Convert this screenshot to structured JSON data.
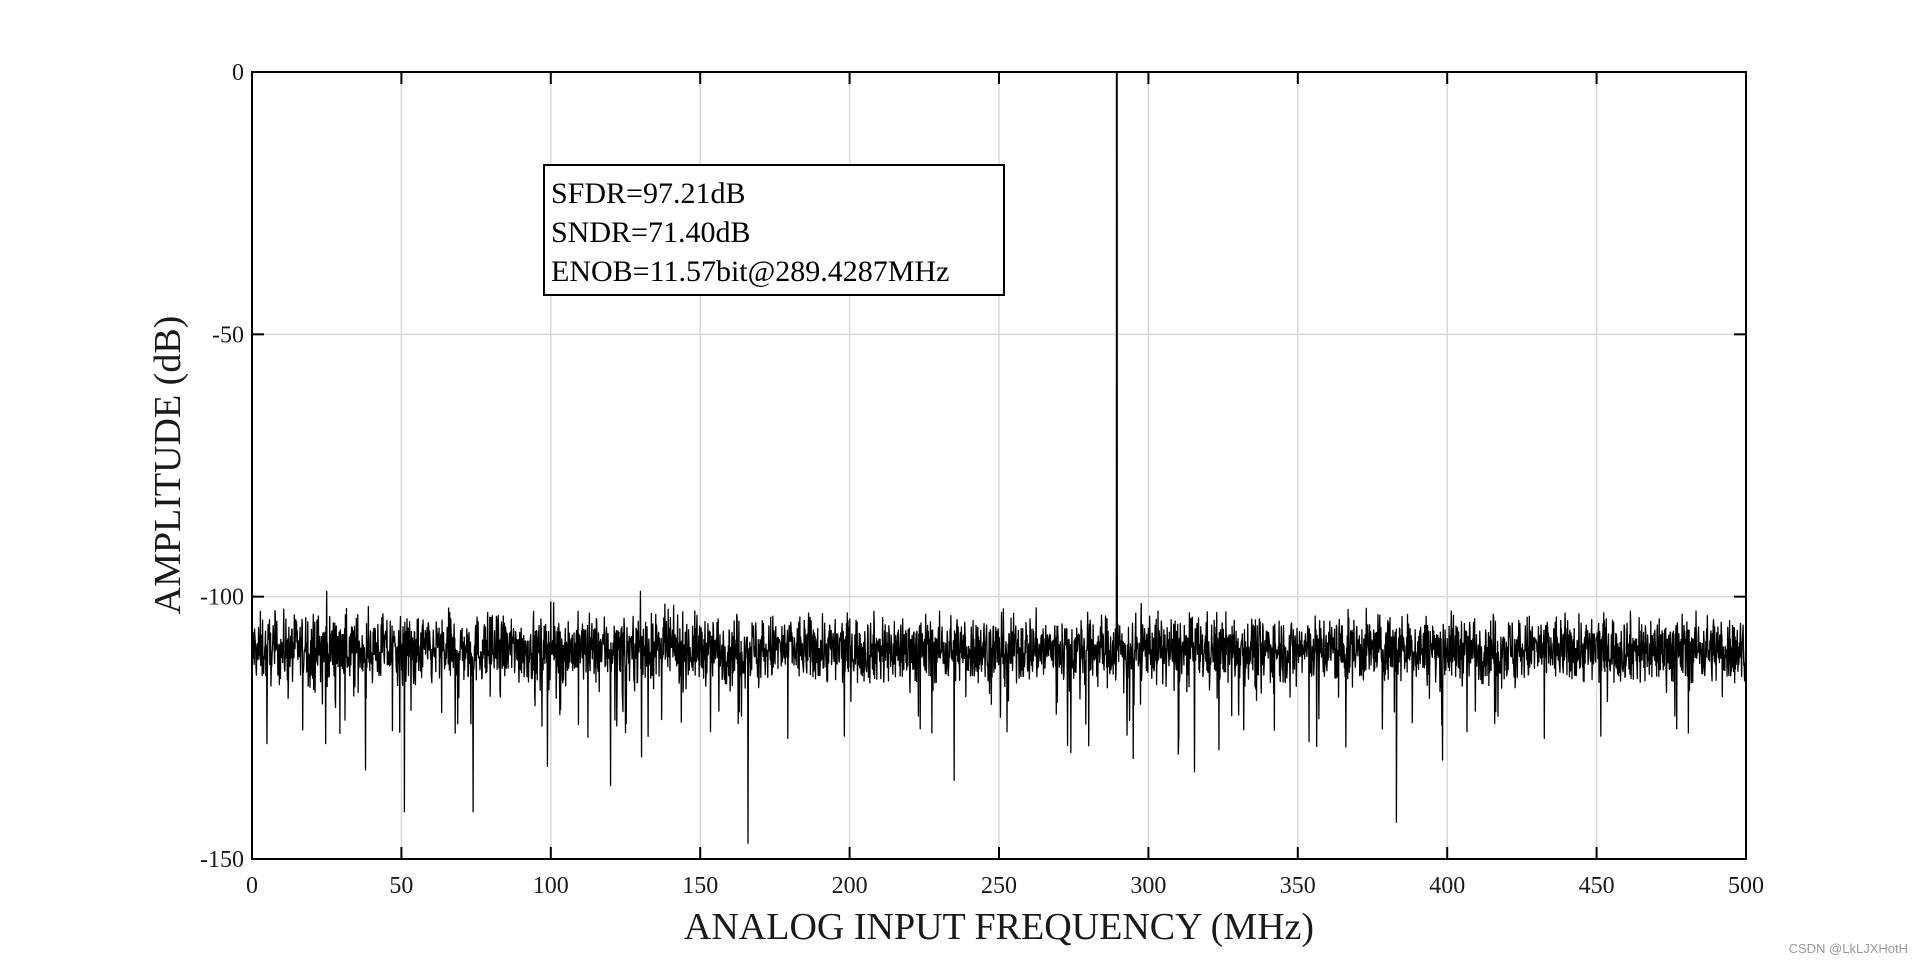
{
  "chart_data": {
    "type": "line",
    "title": "",
    "xlabel": "ANALOG INPUT FREQUENCY (MHz)",
    "ylabel": "AMPLITUDE (dB)",
    "xlim": [
      0,
      500
    ],
    "ylim": [
      -150,
      0
    ],
    "xticks": [
      0,
      50,
      100,
      150,
      200,
      250,
      300,
      350,
      400,
      450,
      500
    ],
    "yticks": [
      0,
      -50,
      -100,
      -150
    ],
    "xtick_labels": [
      "0",
      "50",
      "100",
      "150",
      "200",
      "250",
      "300",
      "350",
      "400",
      "450",
      "500"
    ],
    "ytick_labels": [
      "0",
      "-50",
      "-100",
      "-150"
    ],
    "grid": true,
    "legend": "none",
    "colors": {
      "line": "#000000",
      "grid": "#d9d9d9",
      "axes": "#000000"
    },
    "series": [
      {
        "noise_floor_db_mean": -110,
        "noise_floor_db_range": [
          -147,
          -98
        ],
        "x": [
          0,
          2,
          5,
          12,
          18,
          25,
          38,
          51,
          60,
          68,
          74,
          80,
          100,
          120,
          130,
          140,
          160,
          166,
          180,
          200,
          235,
          260,
          289.4287,
          300,
          310,
          330,
          350,
          380,
          383,
          400,
          440,
          460,
          485,
          500
        ],
        "y": [
          -110,
          -112,
          -128,
          -108,
          -104,
          -99,
          -133,
          -141,
          -115,
          -126,
          -141,
          -104,
          -101,
          -136,
          -99,
          -104,
          -118,
          -147,
          -106,
          -108,
          -135,
          -109,
          0,
          -106,
          -130,
          -108,
          -111,
          -107,
          -143,
          -108,
          -110,
          -111,
          -110,
          -112
        ]
      }
    ],
    "annotations": [
      "SFDR=97.21dB",
      "SNDR=71.40dB",
      "ENOB=11.57bit@289.4287MHz"
    ]
  },
  "watermark": "CSDN @LkLJXHotH"
}
